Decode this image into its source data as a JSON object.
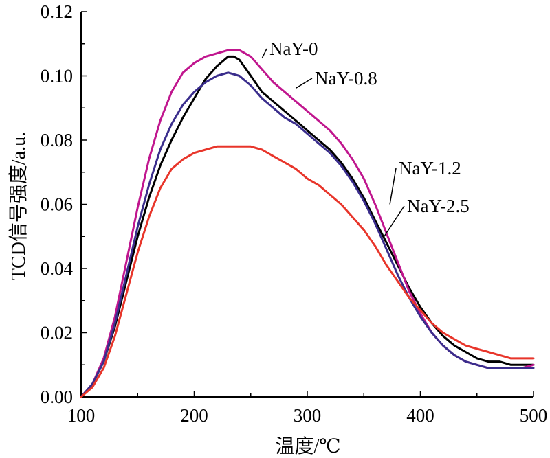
{
  "chart_data": {
    "type": "line",
    "xlabel": "温度/℃",
    "ylabel": "TCD信号强度/a.u.",
    "xlim": [
      100,
      500
    ],
    "ylim": [
      0,
      0.12
    ],
    "xticks": [
      100,
      200,
      300,
      400,
      500
    ],
    "yticks": [
      "0.00",
      "0.02",
      "0.04",
      "0.06",
      "0.08",
      "0.10",
      "0.12"
    ],
    "grid": false,
    "series": [
      {
        "name": "NaY-0",
        "color": "#000000",
        "x": [
          100,
          110,
          120,
          130,
          140,
          150,
          160,
          170,
          180,
          190,
          200,
          210,
          220,
          230,
          235,
          240,
          250,
          260,
          270,
          280,
          290,
          300,
          310,
          320,
          330,
          340,
          350,
          360,
          370,
          380,
          390,
          400,
          410,
          420,
          430,
          440,
          450,
          460,
          470,
          480,
          490,
          500
        ],
        "y": [
          0.0,
          0.004,
          0.011,
          0.022,
          0.036,
          0.05,
          0.062,
          0.072,
          0.08,
          0.087,
          0.093,
          0.099,
          0.103,
          0.106,
          0.106,
          0.105,
          0.1,
          0.095,
          0.092,
          0.089,
          0.086,
          0.083,
          0.08,
          0.077,
          0.073,
          0.068,
          0.062,
          0.055,
          0.048,
          0.041,
          0.034,
          0.028,
          0.023,
          0.019,
          0.016,
          0.014,
          0.012,
          0.011,
          0.011,
          0.01,
          0.01,
          0.01
        ]
      },
      {
        "name": "NaY-0.8",
        "color": "#c0168e",
        "x": [
          100,
          110,
          120,
          130,
          140,
          150,
          160,
          170,
          180,
          190,
          200,
          210,
          220,
          230,
          240,
          250,
          260,
          270,
          280,
          290,
          300,
          310,
          320,
          330,
          340,
          350,
          360,
          370,
          380,
          390,
          400,
          410,
          420,
          430,
          440,
          450,
          460,
          470,
          480,
          490,
          500
        ],
        "y": [
          0.0,
          0.004,
          0.012,
          0.025,
          0.042,
          0.059,
          0.074,
          0.086,
          0.095,
          0.101,
          0.104,
          0.106,
          0.107,
          0.108,
          0.108,
          0.106,
          0.102,
          0.098,
          0.095,
          0.092,
          0.089,
          0.086,
          0.083,
          0.079,
          0.074,
          0.068,
          0.06,
          0.051,
          0.042,
          0.033,
          0.026,
          0.02,
          0.016,
          0.013,
          0.011,
          0.01,
          0.009,
          0.009,
          0.009,
          0.009,
          0.01
        ]
      },
      {
        "name": "NaY-1.2",
        "color": "#3a2d8c",
        "x": [
          100,
          110,
          120,
          130,
          140,
          150,
          160,
          170,
          180,
          190,
          200,
          210,
          220,
          230,
          240,
          250,
          260,
          270,
          280,
          290,
          300,
          310,
          320,
          330,
          340,
          350,
          360,
          370,
          380,
          390,
          400,
          410,
          420,
          430,
          440,
          450,
          460,
          470,
          480,
          490,
          500
        ],
        "y": [
          0.0,
          0.004,
          0.011,
          0.023,
          0.038,
          0.053,
          0.066,
          0.077,
          0.085,
          0.091,
          0.095,
          0.098,
          0.1,
          0.101,
          0.1,
          0.097,
          0.093,
          0.09,
          0.087,
          0.085,
          0.082,
          0.079,
          0.076,
          0.072,
          0.067,
          0.061,
          0.054,
          0.046,
          0.038,
          0.031,
          0.025,
          0.02,
          0.016,
          0.013,
          0.011,
          0.01,
          0.009,
          0.009,
          0.009,
          0.009,
          0.009
        ]
      },
      {
        "name": "NaY-2.5",
        "color": "#e8352a",
        "x": [
          100,
          110,
          120,
          130,
          140,
          150,
          160,
          170,
          180,
          190,
          200,
          210,
          220,
          230,
          240,
          250,
          260,
          270,
          280,
          290,
          300,
          310,
          320,
          330,
          340,
          350,
          360,
          370,
          380,
          390,
          400,
          410,
          420,
          430,
          440,
          450,
          460,
          470,
          480,
          490,
          500
        ],
        "y": [
          0.0,
          0.003,
          0.009,
          0.019,
          0.032,
          0.045,
          0.056,
          0.065,
          0.071,
          0.074,
          0.076,
          0.077,
          0.078,
          0.078,
          0.078,
          0.078,
          0.077,
          0.075,
          0.073,
          0.071,
          0.068,
          0.066,
          0.063,
          0.06,
          0.056,
          0.052,
          0.047,
          0.041,
          0.036,
          0.031,
          0.027,
          0.023,
          0.02,
          0.018,
          0.016,
          0.015,
          0.014,
          0.013,
          0.012,
          0.012,
          0.012
        ]
      }
    ]
  }
}
